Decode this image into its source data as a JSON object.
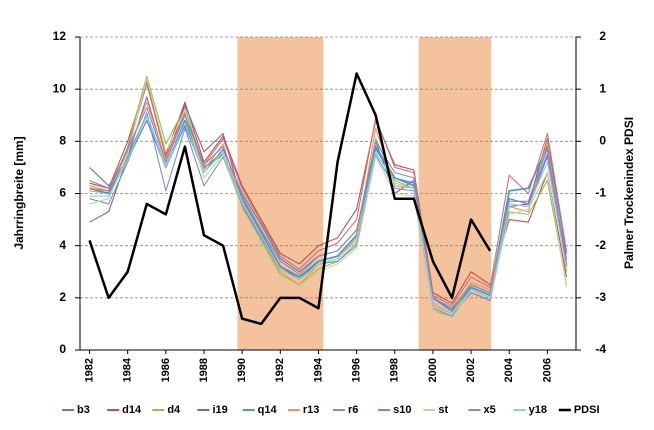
{
  "chart_data": {
    "type": "line",
    "ylabel": "Jahrringbreite [mm]",
    "y2label": "Palmer Trockenindex PDSI",
    "x": [
      1982,
      1983,
      1984,
      1985,
      1986,
      1987,
      1988,
      1989,
      1990,
      1991,
      1992,
      1993,
      1994,
      1995,
      1996,
      1997,
      1998,
      1999,
      2000,
      2001,
      2002,
      2003,
      2004,
      2005,
      2006,
      2007
    ],
    "xlim": [
      1981.5,
      2007.5
    ],
    "xticks": [
      1982,
      1984,
      1986,
      1988,
      1990,
      1992,
      1994,
      1996,
      1998,
      2000,
      2002,
      2004,
      2006
    ],
    "ylim": [
      0,
      12
    ],
    "yticks": [
      0,
      2,
      4,
      6,
      8,
      10,
      12
    ],
    "y2lim": [
      -4,
      2
    ],
    "y2ticks": [
      -4,
      -3,
      -2,
      -1,
      0,
      1,
      2
    ],
    "grid": true,
    "legend": "bottom",
    "highlight_ranges": [
      [
        1989.75,
        1994.25
      ],
      [
        1999.25,
        2003.05
      ]
    ],
    "highlight_color": "#f5c29e",
    "series": [
      {
        "name": "b3",
        "color": "#5b7fc0",
        "values": [
          7.0,
          6.3,
          7.3,
          8.8,
          7.0,
          8.6,
          6.8,
          7.7,
          6.0,
          4.8,
          3.5,
          3.0,
          3.6,
          3.8,
          4.6,
          7.7,
          6.6,
          6.4,
          2.0,
          1.6,
          2.5,
          2.2,
          5.8,
          5.6,
          7.5,
          3.5
        ]
      },
      {
        "name": "d14",
        "color": "#c0504d",
        "values": [
          6.4,
          6.2,
          8.0,
          10.3,
          7.5,
          9.5,
          7.2,
          8.2,
          6.3,
          5.0,
          3.7,
          3.3,
          4.0,
          4.3,
          5.4,
          8.8,
          7.1,
          6.9,
          2.2,
          1.8,
          3.0,
          2.5,
          5.0,
          4.9,
          6.8,
          2.8
        ]
      },
      {
        "name": "d4",
        "color": "#9bbb59",
        "values": [
          6.1,
          6.0,
          7.8,
          10.5,
          7.9,
          9.3,
          7.0,
          7.6,
          5.5,
          4.2,
          2.9,
          2.5,
          3.1,
          3.4,
          4.1,
          8.1,
          6.5,
          6.2,
          1.5,
          1.3,
          2.2,
          1.9,
          5.3,
          5.2,
          6.5,
          2.5
        ]
      },
      {
        "name": "i19",
        "color": "#8064a2",
        "values": [
          4.9,
          5.3,
          7.4,
          9.7,
          7.2,
          9.4,
          7.6,
          8.3,
          5.7,
          4.4,
          3.2,
          2.7,
          3.4,
          3.6,
          4.4,
          8.0,
          6.0,
          6.5,
          1.8,
          1.4,
          2.3,
          2.0,
          5.5,
          5.6,
          8.1,
          3.7
        ]
      },
      {
        "name": "q14",
        "color": "#4a9cb8",
        "values": [
          6.2,
          6.0,
          7.4,
          9.0,
          7.0,
          8.8,
          7.0,
          7.5,
          5.8,
          4.5,
          3.2,
          2.8,
          3.4,
          3.6,
          4.4,
          7.8,
          6.6,
          6.3,
          2.0,
          1.5,
          2.4,
          2.1,
          6.1,
          6.2,
          7.8,
          3.2
        ]
      },
      {
        "name": "r13",
        "color": "#f79646",
        "values": [
          6.3,
          6.1,
          7.6,
          9.5,
          7.3,
          9.0,
          6.9,
          7.9,
          5.6,
          4.3,
          3.0,
          2.5,
          3.3,
          3.5,
          4.3,
          8.5,
          6.3,
          6.2,
          1.7,
          1.4,
          2.6,
          2.3,
          5.5,
          5.3,
          8.0,
          3.0
        ]
      },
      {
        "name": "r6",
        "color": "#7b8fd0",
        "values": [
          5.8,
          5.6,
          7.2,
          9.1,
          6.1,
          8.5,
          6.3,
          7.4,
          5.5,
          4.3,
          3.1,
          2.7,
          3.3,
          3.4,
          4.0,
          7.5,
          6.2,
          6.1,
          1.6,
          1.3,
          2.2,
          1.9,
          5.6,
          5.5,
          7.4,
          3.4
        ]
      },
      {
        "name": "s10",
        "color": "#d07070",
        "values": [
          6.2,
          6.1,
          7.7,
          10.2,
          7.4,
          9.1,
          7.1,
          8.1,
          6.2,
          4.9,
          3.6,
          3.1,
          3.8,
          4.1,
          5.0,
          8.9,
          7.0,
          6.8,
          2.1,
          1.7,
          2.8,
          2.4,
          6.7,
          6.0,
          8.3,
          3.8
        ]
      },
      {
        "name": "st",
        "color": "#c3d69b",
        "values": [
          5.6,
          5.8,
          7.5,
          10.4,
          7.6,
          9.2,
          6.6,
          7.5,
          5.4,
          4.1,
          2.8,
          2.4,
          3.0,
          3.3,
          3.9,
          7.4,
          6.0,
          5.9,
          1.5,
          1.2,
          2.3,
          2.0,
          5.2,
          5.4,
          6.8,
          2.4
        ]
      },
      {
        "name": "x5",
        "color": "#8c84c8",
        "values": [
          6.5,
          6.2,
          7.7,
          9.3,
          7.2,
          9.0,
          7.1,
          7.8,
          5.9,
          4.6,
          3.4,
          2.9,
          3.6,
          3.8,
          4.6,
          8.0,
          6.8,
          6.6,
          2.0,
          1.6,
          2.5,
          2.2,
          5.7,
          5.7,
          7.7,
          3.3
        ]
      },
      {
        "name": "y18",
        "color": "#93cddd",
        "values": [
          5.9,
          5.9,
          7.3,
          9.0,
          7.0,
          8.7,
          6.8,
          7.6,
          5.7,
          4.4,
          3.1,
          2.7,
          3.3,
          3.5,
          4.2,
          7.6,
          6.4,
          6.2,
          1.8,
          1.4,
          2.3,
          2.0,
          5.6,
          5.5,
          7.2,
          3.1
        ]
      },
      {
        "name": "PDSI",
        "color": "#000000",
        "axis": "y2",
        "values": [
          -1.9,
          -3.0,
          -2.5,
          -1.2,
          -1.4,
          -0.1,
          -1.8,
          -2.0,
          -3.4,
          -3.5,
          -3.0,
          -3.0,
          -3.2,
          -0.4,
          1.3,
          0.5,
          -1.1,
          -1.1,
          -2.3,
          -3.0,
          -1.5,
          -2.1,
          null,
          null,
          null,
          null
        ]
      }
    ]
  }
}
